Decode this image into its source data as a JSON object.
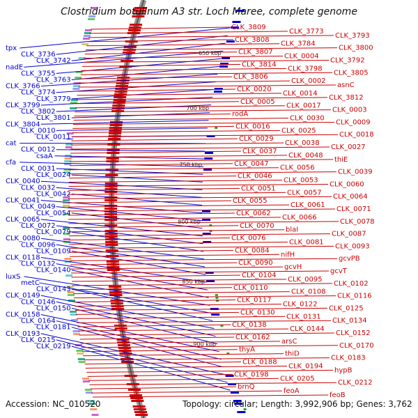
{
  "title": "Clostridium botulinum A3 str. Loch Maree, complete genome",
  "accession_label": "Accession: NC_010520",
  "topology_label": "Topology: circular;",
  "length_label": "Length: 3,992,906 bp;",
  "genes_label": "Genes: 3,762",
  "colors": {
    "left_strand": "#0000cc",
    "right_strand": "#cc0000",
    "backbone": "#888888",
    "tick_marker": "#22aa22"
  },
  "kbp_markers": [
    "650 kbp",
    "700 kbp",
    "750 kbp",
    "800 kbp",
    "850 kbp",
    "900 kbp"
  ],
  "left_labels": [
    "tpx",
    "CLK_3736",
    "CLK_3742",
    "nadE",
    "CLK_3755",
    "CLK_3763",
    "CLK_3766",
    "CLK_3774",
    "CLK_3779",
    "CLK_3799",
    "CLK_3802",
    "CLK_3801",
    "CLK_3804",
    "CLK_0010",
    "CLK_0011",
    "cat",
    "CLK_0012",
    "csaA",
    "cfa",
    "CLK_0031",
    "CLK_0024",
    "CLK_0040",
    "CLK_0032",
    "CLK_0042",
    "CLK_0041",
    "CLK_0049",
    "CLK_0054",
    "CLK_0065",
    "CLK_0072",
    "CLK_0079",
    "CLK_0080",
    "CLK_0096",
    "CLK_0109",
    "CLK_0118",
    "CLK_0132",
    "CLK_0140",
    "luxS",
    "metC",
    "CLK_0143",
    "CLK_0149",
    "CLK_0146",
    "CLK_0150",
    "CLK_0158",
    "CLK_0164",
    "CLK_0181",
    "CLK_0193",
    "CLK_0215",
    "CLK_0219"
  ],
  "right_labels": [
    "CLK_3809",
    "CLK_3773",
    "CLK_3793",
    "CLK_3808",
    "CLK_3784",
    "CLK_3800",
    "CLK_3807",
    "CLK_0004",
    "CLK_3792",
    "CLK_3814",
    "CLK_3798",
    "CLK_3805",
    "CLK_3806",
    "CLK_0002",
    "asnC",
    "CLK_0020",
    "CLK_0014",
    "CLK_3812",
    "CLK_0005",
    "CLK_0017",
    "CLK_0003",
    "rodA",
    "CLK_0030",
    "CLK_0009",
    "CLK_0016",
    "CLK_0025",
    "CLK_0018",
    "CLK_0029",
    "CLK_0038",
    "CLK_0027",
    "CLK_0037",
    "CLK_0048",
    "thiE",
    "CLK_0047",
    "CLK_0056",
    "CLK_0039",
    "CLK_0046",
    "CLK_0053",
    "CLK_0060",
    "CLK_0051",
    "CLK_0057",
    "CLK_0064",
    "CLK_0055",
    "CLK_0061",
    "CLK_0071",
    "CLK_0062",
    "CLK_0066",
    "CLK_0078",
    "CLK_0070",
    "blaI",
    "CLK_0087",
    "CLK_0076",
    "CLK_0081",
    "CLK_0093",
    "CLK_0084",
    "nifH",
    "gcvPB",
    "CLK_0090",
    "gcvH",
    "gcvT",
    "CLK_0104",
    "CLK_0095",
    "CLK_0102",
    "CLK_0110",
    "CLK_0108",
    "CLK_0116",
    "CLK_0117",
    "CLK_0122",
    "CLK_0125",
    "CLK_0130",
    "CLK_0131",
    "CLK_0134",
    "CLK_0138",
    "CLK_0144",
    "CLK_0152",
    "CLK_0162",
    "arsC",
    "CLK_0170",
    "thyA",
    "thiD",
    "CLK_0183",
    "CLK_0188",
    "CLK_0194",
    "hypB",
    "CLK_0198",
    "CLK_0205",
    "CLK_0212",
    "brnQ",
    "feoA",
    "feoB"
  ]
}
